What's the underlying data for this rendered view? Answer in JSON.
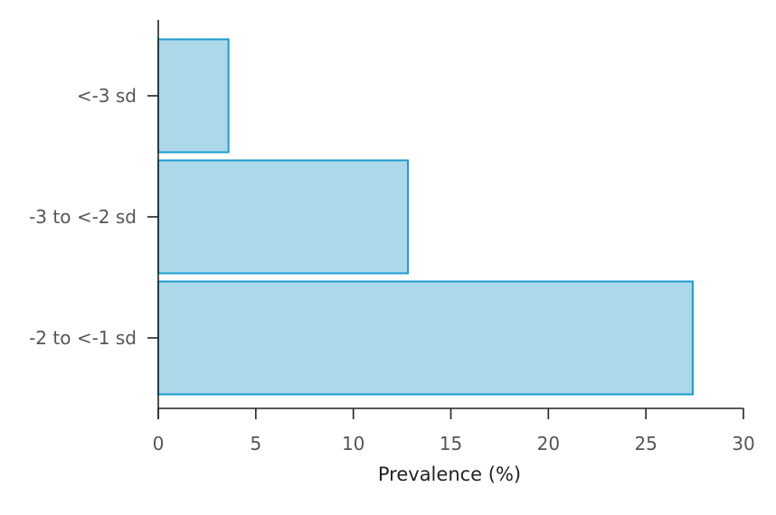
{
  "chart_data": {
    "type": "bar",
    "orientation": "horizontal",
    "categories": [
      "<-3 sd",
      "-3 to <-2 sd",
      "-2 to <-1 sd"
    ],
    "values": [
      3.6,
      12.8,
      27.4
    ],
    "xlabel": "Prevalence (%)",
    "ylabel": "",
    "xlim": [
      0,
      30
    ],
    "xticks": [
      0,
      5,
      10,
      15,
      20,
      25,
      30
    ],
    "grid": false,
    "colors": {
      "bar_fill": "#add8e9",
      "bar_stroke": "#1a9bd0",
      "axis": "#222222",
      "tick_text": "#555555",
      "label_text": "#222222"
    }
  }
}
